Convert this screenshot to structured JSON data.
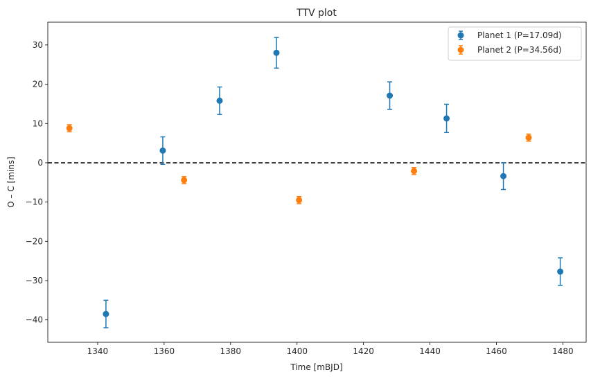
{
  "chart_data": {
    "type": "scatter",
    "title": "TTV plot",
    "xlabel": "Time [mBJD]",
    "ylabel": "O – C [mins]",
    "xlim": [
      1325,
      1487
    ],
    "ylim": [
      -45.7,
      35.8
    ],
    "xticks": [
      1340,
      1360,
      1380,
      1400,
      1420,
      1440,
      1460,
      1480
    ],
    "yticks": [
      -40,
      -30,
      -20,
      -10,
      0,
      10,
      20,
      30
    ],
    "reference_line": {
      "y": 0,
      "style": "dashed",
      "color": "#000000"
    },
    "legend_position": "top-right",
    "grid": false,
    "series": [
      {
        "name": "Planet 1 (P=17.09d)",
        "color": "#1f77b4",
        "points": [
          {
            "x": 1342.5,
            "y": -38.5,
            "err": 3.5
          },
          {
            "x": 1359.6,
            "y": 3.1,
            "err": 3.5
          },
          {
            "x": 1376.7,
            "y": 15.8,
            "err": 3.5
          },
          {
            "x": 1393.8,
            "y": 28.0,
            "err": 3.9
          },
          {
            "x": 1427.9,
            "y": 17.1,
            "err": 3.5
          },
          {
            "x": 1445.0,
            "y": 11.3,
            "err": 3.6
          },
          {
            "x": 1462.1,
            "y": -3.4,
            "err": 3.4
          },
          {
            "x": 1479.2,
            "y": -27.7,
            "err": 3.5
          }
        ]
      },
      {
        "name": "Planet 2 (P=34.56d)",
        "color": "#ff7f0e",
        "points": [
          {
            "x": 1331.5,
            "y": 8.8,
            "err": 0.9
          },
          {
            "x": 1366.0,
            "y": -4.4,
            "err": 0.9
          },
          {
            "x": 1400.6,
            "y": -9.5,
            "err": 0.9
          },
          {
            "x": 1435.2,
            "y": -2.1,
            "err": 0.9
          },
          {
            "x": 1469.7,
            "y": 6.4,
            "err": 0.9
          }
        ]
      }
    ]
  }
}
